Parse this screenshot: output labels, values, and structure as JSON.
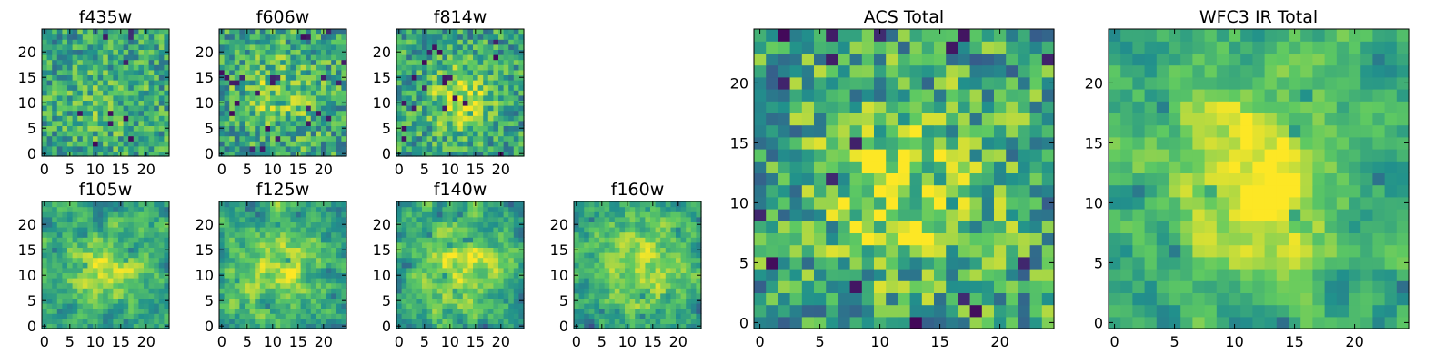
{
  "figure": {
    "colormap": "viridis",
    "colormap_stops": [
      "#440154",
      "#3b528b",
      "#21918c",
      "#5ec962",
      "#fde725"
    ],
    "frame_color": "#000000",
    "background": "#ffffff"
  },
  "chart_data": [
    {
      "type": "heatmap",
      "title": "f435w",
      "grid": false,
      "size": 25,
      "xlim": [
        0,
        24
      ],
      "ylim": [
        0,
        24
      ],
      "xticks": [
        0,
        5,
        10,
        15,
        20
      ],
      "yticks": [
        0,
        5,
        10,
        15,
        20
      ],
      "seed": 11,
      "blob_strength": 0.1,
      "noise": 0.24,
      "smooth": 0,
      "dark_rate": 0.02,
      "center": [
        12,
        10
      ],
      "sigma": 6
    },
    {
      "type": "heatmap",
      "title": "f606w",
      "grid": false,
      "size": 25,
      "xlim": [
        0,
        24
      ],
      "ylim": [
        0,
        24
      ],
      "xticks": [
        0,
        5,
        10,
        15,
        20
      ],
      "yticks": [
        0,
        5,
        10,
        15,
        20
      ],
      "seed": 23,
      "blob_strength": 0.18,
      "noise": 0.26,
      "smooth": 0,
      "dark_rate": 0.03,
      "center": [
        11,
        12
      ],
      "sigma": 6
    },
    {
      "type": "heatmap",
      "title": "f814w",
      "grid": false,
      "size": 25,
      "xlim": [
        0,
        24
      ],
      "ylim": [
        0,
        24
      ],
      "xticks": [
        0,
        5,
        10,
        15,
        20
      ],
      "yticks": [
        0,
        5,
        10,
        15,
        20
      ],
      "seed": 37,
      "blob_strength": 0.3,
      "noise": 0.24,
      "smooth": 0,
      "dark_rate": 0.035,
      "center": [
        12,
        11
      ],
      "sigma": 4.5
    },
    {
      "type": "heatmap",
      "title": "f105w",
      "grid": false,
      "size": 25,
      "xlim": [
        0,
        24
      ],
      "ylim": [
        0,
        24
      ],
      "xticks": [
        0,
        5,
        10,
        15,
        20
      ],
      "yticks": [
        0,
        5,
        10,
        15,
        20
      ],
      "seed": 41,
      "blob_strength": 0.32,
      "noise": 0.34,
      "smooth": 1,
      "dark_rate": 0.015,
      "center": [
        12,
        11
      ],
      "sigma": 5
    },
    {
      "type": "heatmap",
      "title": "f125w",
      "grid": false,
      "size": 25,
      "xlim": [
        0,
        24
      ],
      "ylim": [
        0,
        24
      ],
      "xticks": [
        0,
        5,
        10,
        15,
        20
      ],
      "yticks": [
        0,
        5,
        10,
        15,
        20
      ],
      "seed": 53,
      "blob_strength": 0.3,
      "noise": 0.36,
      "smooth": 1,
      "dark_rate": 0.02,
      "center": [
        11,
        11
      ],
      "sigma": 6
    },
    {
      "type": "heatmap",
      "title": "f140w",
      "grid": false,
      "size": 25,
      "xlim": [
        0,
        24
      ],
      "ylim": [
        0,
        24
      ],
      "xticks": [
        0,
        5,
        10,
        15,
        20
      ],
      "yticks": [
        0,
        5,
        10,
        15,
        20
      ],
      "seed": 67,
      "blob_strength": 0.34,
      "noise": 0.34,
      "smooth": 1,
      "dark_rate": 0.02,
      "center": [
        12,
        12
      ],
      "sigma": 6
    },
    {
      "type": "heatmap",
      "title": "f160w",
      "grid": false,
      "size": 25,
      "xlim": [
        0,
        24
      ],
      "ylim": [
        0,
        24
      ],
      "xticks": [
        0,
        5,
        10,
        15,
        20
      ],
      "yticks": [
        0,
        5,
        10,
        15,
        20
      ],
      "seed": 79,
      "blob_strength": 0.3,
      "noise": 0.34,
      "smooth": 1,
      "dark_rate": 0.02,
      "center": [
        13,
        12
      ],
      "sigma": 6
    },
    {
      "type": "heatmap",
      "title": "ACS Total",
      "grid": false,
      "size": 25,
      "xlim": [
        0,
        24
      ],
      "ylim": [
        0,
        24
      ],
      "xticks": [
        0,
        5,
        10,
        15,
        20
      ],
      "yticks": [
        0,
        5,
        10,
        15,
        20
      ],
      "seed": 97,
      "blob_strength": 0.28,
      "noise": 0.3,
      "smooth": 0,
      "dark_rate": 0.035,
      "center": [
        12,
        11
      ],
      "sigma": 5
    },
    {
      "type": "heatmap",
      "title": "WFC3 IR Total",
      "grid": false,
      "size": 25,
      "xlim": [
        0,
        24
      ],
      "ylim": [
        0,
        24
      ],
      "xticks": [
        0,
        5,
        10,
        15,
        20
      ],
      "yticks": [
        0,
        5,
        10,
        15,
        20
      ],
      "seed": 131,
      "blob_strength": 0.42,
      "noise": 0.3,
      "smooth": 1,
      "dark_rate": 0.02,
      "center": [
        12,
        12
      ],
      "sigma": 6
    }
  ]
}
